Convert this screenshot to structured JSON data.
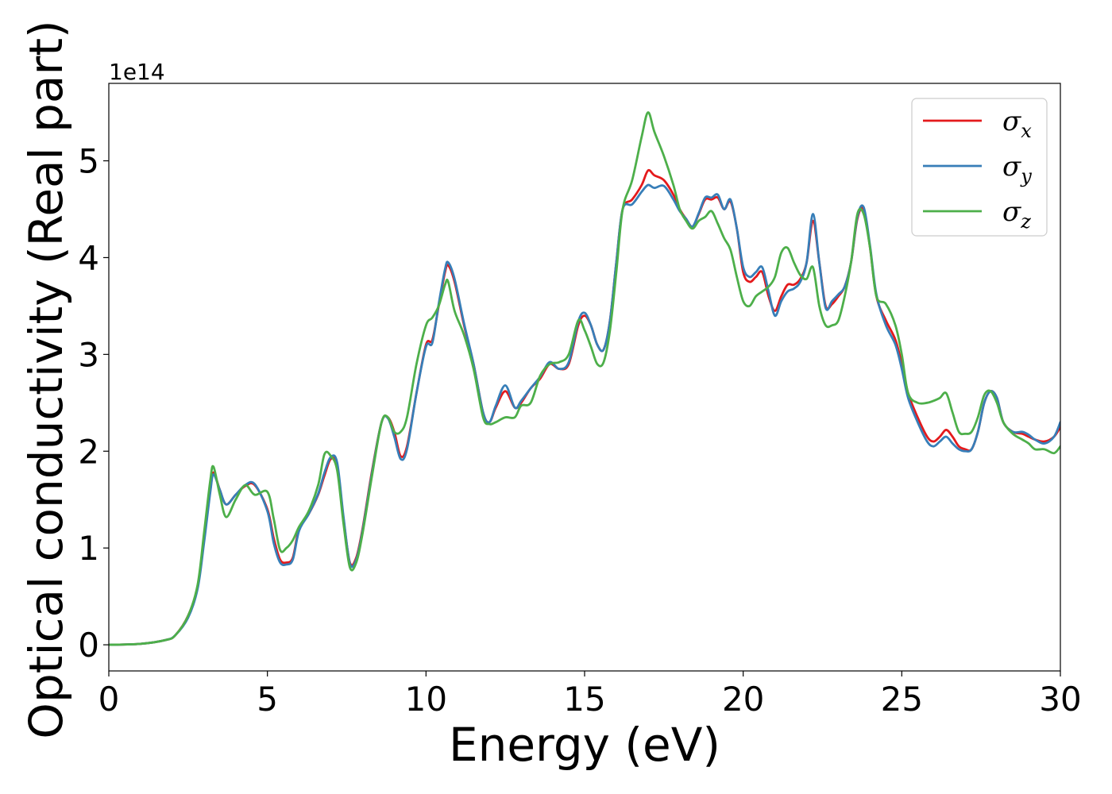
{
  "chart_data": {
    "type": "line",
    "xlabel": "Energy (eV)",
    "ylabel": "Optical conductivity (Real part)",
    "y_offset_label": "1e14",
    "xlim": [
      0,
      30
    ],
    "ylim": [
      -0.27,
      5.8
    ],
    "x_ticks": [
      0,
      5,
      10,
      15,
      20,
      25,
      30
    ],
    "y_ticks": [
      0,
      1,
      2,
      3,
      4,
      5
    ],
    "grid": false,
    "legend_position": "top-right",
    "series": [
      {
        "name": "σx",
        "symbol": "σ",
        "subscript": "x",
        "color": "#e41a1c",
        "x": [
          0,
          1,
          1.8,
          2.1,
          2.5,
          2.8,
          3,
          3.2,
          3.3,
          3.5,
          3.7,
          4,
          4.3,
          4.6,
          5,
          5.2,
          5.4,
          5.6,
          5.8,
          6,
          6.3,
          6.6,
          6.8,
          7,
          7.2,
          7.4,
          7.6,
          7.8,
          8,
          8.3,
          8.6,
          8.8,
          9,
          9.2,
          9.4,
          9.7,
          10,
          10.2,
          10.4,
          10.6,
          10.7,
          10.9,
          11.2,
          11.5,
          11.8,
          12,
          12.2,
          12.5,
          12.8,
          13,
          13.3,
          13.6,
          13.9,
          14.2,
          14.5,
          14.8,
          15,
          15.2,
          15.4,
          15.6,
          15.8,
          16,
          16.2,
          16.5,
          16.8,
          17,
          17.2,
          17.5,
          17.8,
          18,
          18.2,
          18.4,
          18.6,
          18.8,
          19,
          19.2,
          19.4,
          19.6,
          19.8,
          20,
          20.2,
          20.4,
          20.6,
          20.8,
          21,
          21.2,
          21.4,
          21.6,
          21.8,
          22,
          22.2,
          22.4,
          22.6,
          22.8,
          23,
          23.2,
          23.4,
          23.6,
          23.8,
          24,
          24.2,
          24.5,
          24.8,
          25,
          25.2,
          25.5,
          25.8,
          26,
          26.2,
          26.4,
          26.6,
          26.8,
          27,
          27.2,
          27.4,
          27.6,
          27.8,
          28,
          28.2,
          28.5,
          28.8,
          29,
          29.2,
          29.5,
          29.8,
          30
        ],
        "y": [
          0,
          0.01,
          0.05,
          0.1,
          0.3,
          0.6,
          1.1,
          1.6,
          1.78,
          1.6,
          1.45,
          1.55,
          1.64,
          1.65,
          1.4,
          1.1,
          0.88,
          0.85,
          0.9,
          1.2,
          1.35,
          1.55,
          1.75,
          1.92,
          1.85,
          1.3,
          0.85,
          0.9,
          1.2,
          1.8,
          2.3,
          2.35,
          2.2,
          1.95,
          2.05,
          2.6,
          3.1,
          3.15,
          3.5,
          3.85,
          3.92,
          3.75,
          3.3,
          2.9,
          2.4,
          2.3,
          2.45,
          2.62,
          2.45,
          2.5,
          2.65,
          2.75,
          2.9,
          2.85,
          2.9,
          3.3,
          3.4,
          3.3,
          3.1,
          3.05,
          3.35,
          3.95,
          4.5,
          4.6,
          4.75,
          4.9,
          4.85,
          4.8,
          4.65,
          4.5,
          4.4,
          4.32,
          4.45,
          4.6,
          4.6,
          4.62,
          4.5,
          4.58,
          4.3,
          3.85,
          3.75,
          3.8,
          3.85,
          3.6,
          3.45,
          3.6,
          3.72,
          3.72,
          3.78,
          3.95,
          4.38,
          3.95,
          3.5,
          3.52,
          3.6,
          3.7,
          3.95,
          4.4,
          4.5,
          4.1,
          3.6,
          3.35,
          3.15,
          2.9,
          2.6,
          2.35,
          2.15,
          2.1,
          2.15,
          2.22,
          2.15,
          2.05,
          2.02,
          2.02,
          2.2,
          2.5,
          2.62,
          2.55,
          2.3,
          2.2,
          2.18,
          2.15,
          2.12,
          2.1,
          2.15,
          2.25
        ]
      },
      {
        "name": "σy",
        "symbol": "σ",
        "subscript": "y",
        "color": "#377eb8",
        "x": [
          0,
          1,
          1.8,
          2.1,
          2.5,
          2.8,
          3,
          3.2,
          3.3,
          3.5,
          3.7,
          4,
          4.3,
          4.6,
          5,
          5.2,
          5.4,
          5.6,
          5.8,
          6,
          6.3,
          6.6,
          6.8,
          7,
          7.2,
          7.4,
          7.6,
          7.8,
          8,
          8.3,
          8.6,
          8.8,
          9,
          9.2,
          9.4,
          9.7,
          10,
          10.2,
          10.4,
          10.6,
          10.7,
          10.9,
          11.2,
          11.5,
          11.8,
          12,
          12.2,
          12.5,
          12.8,
          13,
          13.3,
          13.6,
          13.9,
          14.2,
          14.5,
          14.8,
          15,
          15.2,
          15.4,
          15.6,
          15.8,
          16,
          16.2,
          16.5,
          16.8,
          17,
          17.2,
          17.5,
          17.8,
          18,
          18.2,
          18.4,
          18.6,
          18.8,
          19,
          19.2,
          19.4,
          19.6,
          19.8,
          20,
          20.2,
          20.4,
          20.6,
          20.8,
          21,
          21.2,
          21.4,
          21.6,
          21.8,
          22,
          22.2,
          22.4,
          22.6,
          22.8,
          23,
          23.2,
          23.4,
          23.6,
          23.8,
          24,
          24.2,
          24.5,
          24.8,
          25,
          25.2,
          25.5,
          25.8,
          26,
          26.2,
          26.4,
          26.6,
          26.8,
          27,
          27.2,
          27.4,
          27.6,
          27.8,
          28,
          28.2,
          28.5,
          28.8,
          29,
          29.2,
          29.5,
          29.8,
          30
        ],
        "y": [
          0,
          0.01,
          0.05,
          0.1,
          0.28,
          0.58,
          1.05,
          1.58,
          1.76,
          1.6,
          1.45,
          1.55,
          1.65,
          1.66,
          1.38,
          1.05,
          0.85,
          0.83,
          0.88,
          1.18,
          1.35,
          1.56,
          1.78,
          1.94,
          1.88,
          1.32,
          0.84,
          0.88,
          1.18,
          1.78,
          2.3,
          2.34,
          2.15,
          1.92,
          2.02,
          2.6,
          3.08,
          3.12,
          3.52,
          3.88,
          3.95,
          3.78,
          3.32,
          2.9,
          2.4,
          2.3,
          2.47,
          2.68,
          2.45,
          2.52,
          2.65,
          2.77,
          2.92,
          2.85,
          2.92,
          3.34,
          3.43,
          3.3,
          3.1,
          3.05,
          3.35,
          3.95,
          4.5,
          4.55,
          4.68,
          4.75,
          4.72,
          4.74,
          4.6,
          4.48,
          4.4,
          4.32,
          4.46,
          4.62,
          4.62,
          4.65,
          4.5,
          4.6,
          4.3,
          3.9,
          3.8,
          3.85,
          3.9,
          3.65,
          3.4,
          3.55,
          3.65,
          3.68,
          3.75,
          3.95,
          4.45,
          3.95,
          3.48,
          3.55,
          3.62,
          3.7,
          3.95,
          4.42,
          4.52,
          4.12,
          3.62,
          3.3,
          3.1,
          2.85,
          2.55,
          2.3,
          2.1,
          2.05,
          2.1,
          2.15,
          2.08,
          2.02,
          2,
          2.02,
          2.2,
          2.5,
          2.62,
          2.55,
          2.3,
          2.2,
          2.2,
          2.17,
          2.12,
          2.08,
          2.15,
          2.3
        ]
      },
      {
        "name": "σz",
        "symbol": "σ",
        "subscript": "z",
        "color": "#4daf4a",
        "x": [
          0,
          1,
          1.8,
          2.1,
          2.5,
          2.8,
          3,
          3.2,
          3.3,
          3.5,
          3.7,
          4,
          4.3,
          4.6,
          5,
          5.2,
          5.4,
          5.6,
          5.8,
          6,
          6.3,
          6.6,
          6.8,
          7,
          7.2,
          7.4,
          7.6,
          7.8,
          8,
          8.3,
          8.6,
          8.8,
          9,
          9.2,
          9.4,
          9.7,
          10,
          10.2,
          10.4,
          10.6,
          10.7,
          10.9,
          11.2,
          11.5,
          11.8,
          12,
          12.2,
          12.5,
          12.8,
          13,
          13.3,
          13.6,
          13.9,
          14.2,
          14.5,
          14.8,
          15,
          15.2,
          15.4,
          15.6,
          15.8,
          16,
          16.2,
          16.5,
          16.8,
          17,
          17.2,
          17.5,
          17.8,
          18,
          18.2,
          18.4,
          18.6,
          18.8,
          19,
          19.2,
          19.4,
          19.6,
          19.8,
          20,
          20.2,
          20.4,
          20.6,
          20.8,
          21,
          21.2,
          21.4,
          21.6,
          21.8,
          22,
          22.2,
          22.4,
          22.6,
          22.8,
          23,
          23.2,
          23.4,
          23.6,
          23.8,
          24,
          24.2,
          24.5,
          24.8,
          25,
          25.2,
          25.5,
          25.8,
          26,
          26.2,
          26.4,
          26.6,
          26.8,
          27,
          27.2,
          27.4,
          27.6,
          27.8,
          28,
          28.2,
          28.5,
          28.8,
          29,
          29.2,
          29.5,
          29.8,
          30
        ],
        "y": [
          0,
          0.01,
          0.05,
          0.1,
          0.3,
          0.62,
          1.15,
          1.7,
          1.84,
          1.55,
          1.32,
          1.5,
          1.65,
          1.55,
          1.58,
          1.3,
          0.98,
          1,
          1.08,
          1.22,
          1.38,
          1.65,
          1.97,
          1.95,
          1.8,
          1.25,
          0.8,
          0.85,
          1.15,
          1.75,
          2.3,
          2.35,
          2.2,
          2.2,
          2.35,
          2.9,
          3.3,
          3.38,
          3.5,
          3.72,
          3.75,
          3.45,
          3.2,
          2.85,
          2.35,
          2.28,
          2.3,
          2.35,
          2.35,
          2.47,
          2.5,
          2.78,
          2.9,
          2.92,
          3,
          3.35,
          3.25,
          3.08,
          2.9,
          2.92,
          3.25,
          3.85,
          4.5,
          4.8,
          5.25,
          5.5,
          5.3,
          5.05,
          4.75,
          4.5,
          4.38,
          4.3,
          4.38,
          4.42,
          4.48,
          4.35,
          4.2,
          4.08,
          3.8,
          3.55,
          3.5,
          3.6,
          3.65,
          3.7,
          3.8,
          4.05,
          4.1,
          3.95,
          3.82,
          3.78,
          3.9,
          3.5,
          3.3,
          3.3,
          3.35,
          3.6,
          3.95,
          4.45,
          4.45,
          4.1,
          3.6,
          3.52,
          3.3,
          3,
          2.6,
          2.5,
          2.5,
          2.52,
          2.55,
          2.6,
          2.4,
          2.2,
          2.18,
          2.2,
          2.35,
          2.58,
          2.62,
          2.5,
          2.3,
          2.18,
          2.12,
          2.08,
          2.02,
          2.02,
          1.98,
          2.05
        ]
      }
    ]
  }
}
